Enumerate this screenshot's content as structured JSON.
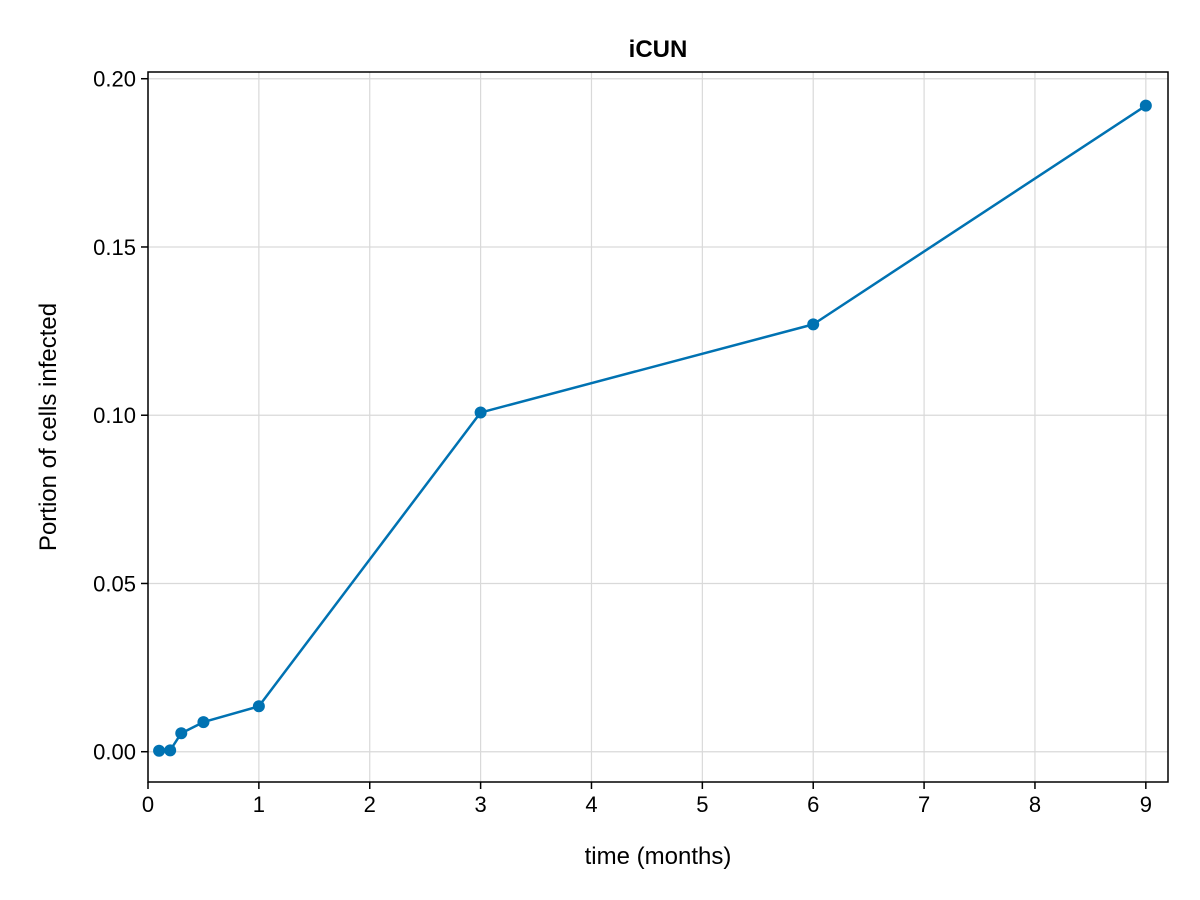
{
  "chart_data": {
    "type": "line",
    "title": "iCUN",
    "xlabel": "time (months)",
    "ylabel": "Portion of cells infected",
    "xlim": [
      0,
      9.2
    ],
    "ylim": [
      -0.009,
      0.202
    ],
    "xticks": [
      0,
      1,
      2,
      3,
      4,
      5,
      6,
      7,
      8,
      9
    ],
    "xtick_labels": [
      "0",
      "1",
      "2",
      "3",
      "4",
      "5",
      "6",
      "7",
      "8",
      "9"
    ],
    "yticks": [
      0.0,
      0.05,
      0.1,
      0.15,
      0.2
    ],
    "ytick_labels": [
      "0.00",
      "0.05",
      "0.10",
      "0.15",
      "0.20"
    ],
    "grid": true,
    "series": [
      {
        "color": "#0072b2",
        "markers": true,
        "x": [
          0.1,
          0.2,
          0.3,
          0.5,
          1,
          3,
          6,
          9
        ],
        "y": [
          0.0003,
          0.0004,
          0.0055,
          0.0088,
          0.0135,
          0.1008,
          0.127,
          0.192
        ]
      }
    ]
  }
}
